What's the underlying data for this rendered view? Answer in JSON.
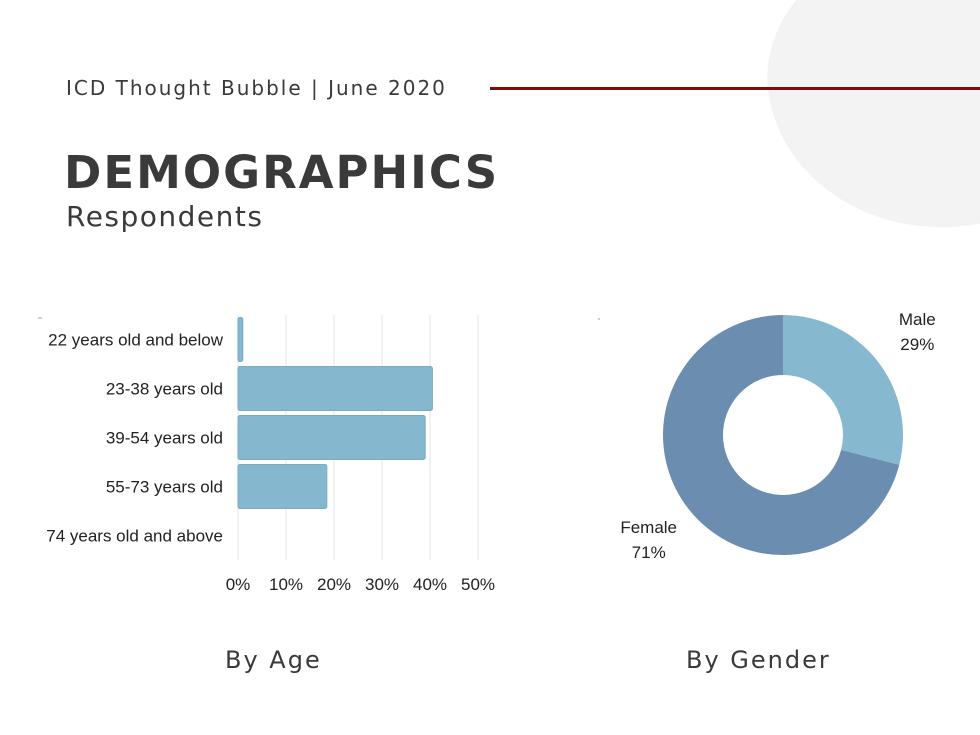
{
  "header": {
    "publication": "ICD Thought Bubble | June 2020",
    "title": "DEMOGRAPHICS",
    "subtitle": "Respondents"
  },
  "captions": {
    "age": "By Age",
    "gender": "By Gender"
  },
  "colors": {
    "bar": "#85b7cf",
    "bar_stroke": "#7aaac3",
    "male": "#86b8cf",
    "female": "#6b8daf",
    "grid": "#e6e6e6",
    "accent_rule": "#7a0f12"
  },
  "chart_data": [
    {
      "type": "bar",
      "orientation": "horizontal",
      "categories": [
        "22 years old and below",
        "23-38 years old",
        "39-54 years old",
        "55-73 years old",
        "74 years old and above"
      ],
      "values": [
        1,
        40.5,
        39,
        18.5,
        0
      ],
      "xlim": [
        0,
        50
      ],
      "xticks": [
        "0%",
        "10%",
        "20%",
        "30%",
        "40%",
        "50%"
      ],
      "grid": true
    },
    {
      "type": "pie",
      "donut": true,
      "slices": [
        {
          "label": "Male",
          "value": 29,
          "value_label": "29%"
        },
        {
          "label": "Female",
          "value": 71,
          "value_label": "71%"
        }
      ]
    }
  ]
}
